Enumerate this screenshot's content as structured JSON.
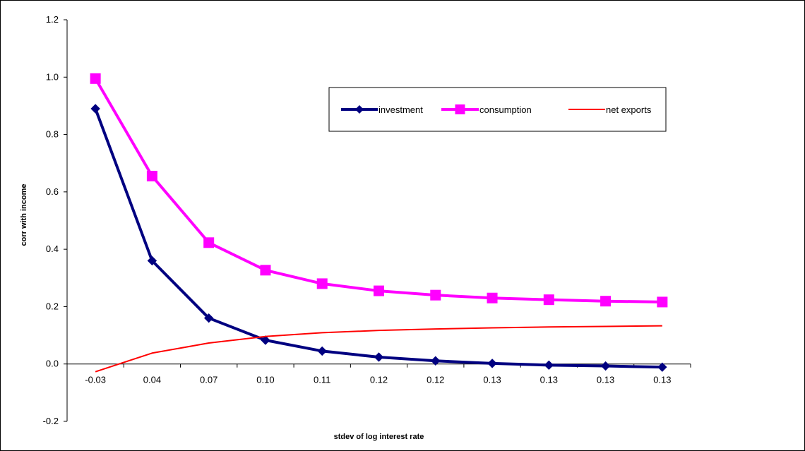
{
  "chart_data": {
    "type": "line",
    "title": "",
    "xlabel": "stdev of log interest rate",
    "ylabel": "corr with income",
    "categories": [
      "-0.03",
      "0.04",
      "0.07",
      "0.10",
      "0.11",
      "0.12",
      "0.12",
      "0.13",
      "0.13",
      "0.13",
      "0.13"
    ],
    "ylim": [
      -0.2,
      1.2
    ],
    "yticks": [
      "-0.2",
      "0.0",
      "0.2",
      "0.4",
      "0.6",
      "0.8",
      "1.0",
      "1.2"
    ],
    "grid": false,
    "legend_position": "top-right",
    "series": [
      {
        "name": "investment",
        "color": "#000080",
        "marker": "diamond",
        "values": [
          0.89,
          0.36,
          0.16,
          0.083,
          0.045,
          0.024,
          0.011,
          0.002,
          -0.004,
          -0.007,
          -0.011
        ]
      },
      {
        "name": "consumption",
        "color": "#ff00ff",
        "marker": "square",
        "values": [
          0.995,
          0.655,
          0.423,
          0.327,
          0.28,
          0.255,
          0.24,
          0.23,
          0.224,
          0.219,
          0.216
        ]
      },
      {
        "name": "net exports",
        "color": "#ff0000",
        "marker": "none",
        "values": [
          -0.027,
          0.038,
          0.073,
          0.096,
          0.109,
          0.117,
          0.122,
          0.126,
          0.129,
          0.131,
          0.133
        ]
      }
    ]
  }
}
